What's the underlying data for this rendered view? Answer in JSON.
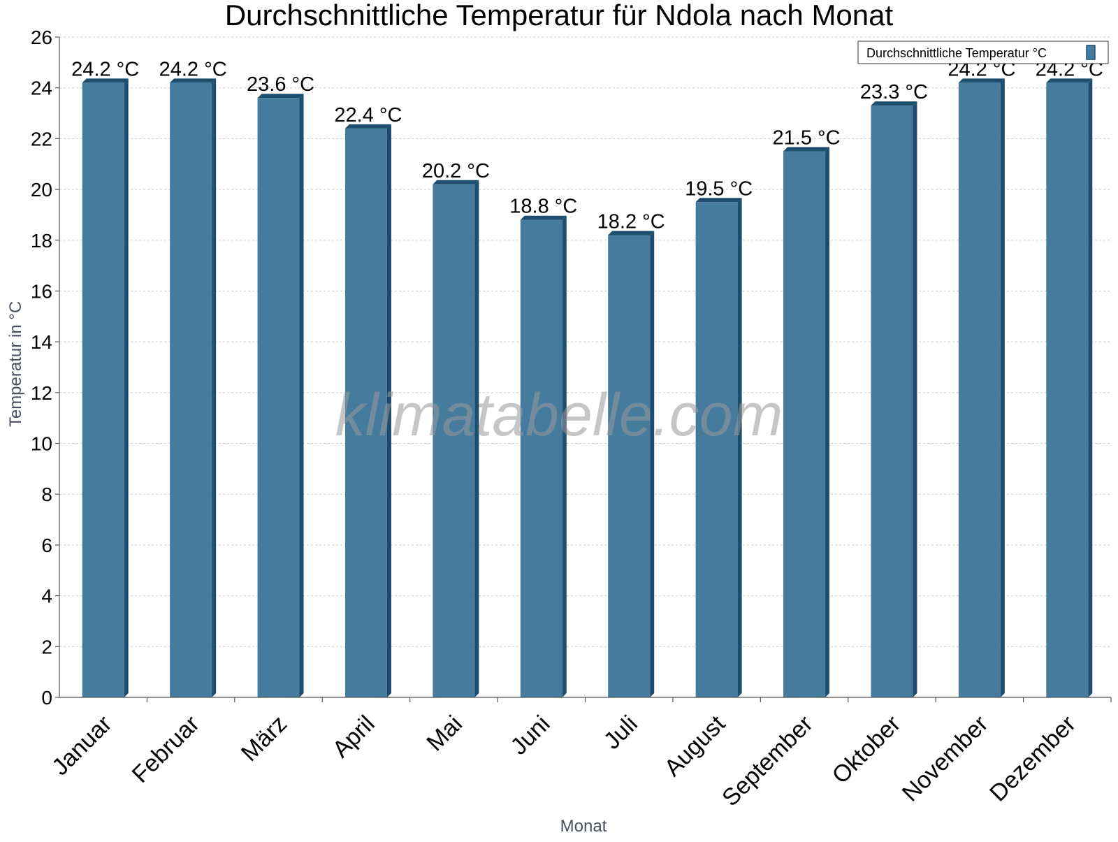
{
  "chart_data": {
    "type": "bar",
    "title": "Durchschnittliche Temperatur für Ndola nach Monat",
    "xlabel": "Monat",
    "ylabel": "Temperatur in °C",
    "ylim": [
      0,
      26
    ],
    "yticks": [
      0,
      2,
      4,
      6,
      8,
      10,
      12,
      14,
      16,
      18,
      20,
      22,
      24,
      26
    ],
    "grid": true,
    "legend_position": "top-right",
    "categories": [
      "Januar",
      "Februar",
      "März",
      "April",
      "Mai",
      "Juni",
      "Juli",
      "August",
      "September",
      "Oktober",
      "November",
      "Dezember"
    ],
    "series": [
      {
        "name": "Durchschnittliche Temperatur °C",
        "values": [
          24.2,
          24.2,
          23.6,
          22.4,
          20.2,
          18.8,
          18.2,
          19.5,
          21.5,
          23.3,
          24.2,
          24.2
        ],
        "labels": [
          "24.2 °C",
          "24.2 °C",
          "23.6 °C",
          "22.4 °C",
          "20.2 °C",
          "18.8 °C",
          "18.2 °C",
          "19.5 °C",
          "21.5 °C",
          "23.3 °C",
          "24.2 °C",
          "24.2 °C"
        ],
        "color": "#457b9d",
        "edge_color": "#1d4e6e"
      }
    ]
  },
  "watermark": "klimatabelle.com"
}
